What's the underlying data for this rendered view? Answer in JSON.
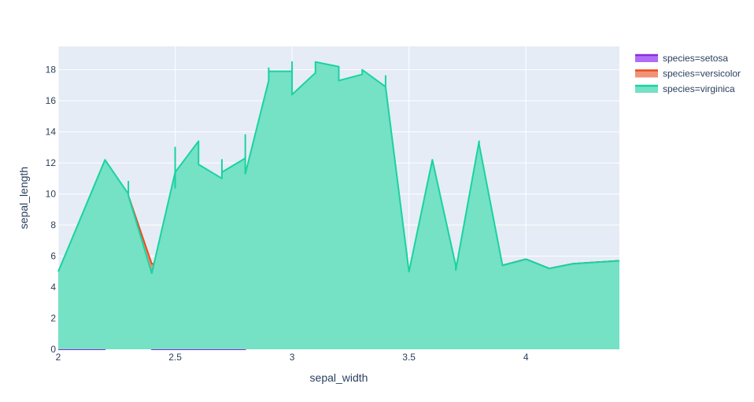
{
  "chart_data": {
    "type": "area",
    "xlabel": "sepal_width",
    "ylabel": "sepal_length",
    "xlim": [
      2.0,
      4.4
    ],
    "ylim": [
      0,
      19.5
    ],
    "x_ticks": [
      2,
      2.5,
      3,
      3.5,
      4
    ],
    "x_tick_labels": [
      "2",
      "2.5",
      "3",
      "3.5",
      "4"
    ],
    "y_ticks": [
      0,
      2,
      4,
      6,
      8,
      10,
      12,
      14,
      16,
      18
    ],
    "y_tick_labels": [
      "0",
      "2",
      "4",
      "6",
      "8",
      "10",
      "12",
      "14",
      "16",
      "18"
    ],
    "grid": true,
    "legend_position": "top-right",
    "background_color": "#e5ecf6",
    "series": [
      {
        "name": "species=setosa",
        "color": "#636efa",
        "fill_color": "#b06ef8",
        "line_color": "#8a2be2",
        "points": [
          [
            2.0,
            0
          ],
          [
            2.2,
            0
          ],
          [
            2.3,
            4.5
          ],
          [
            2.4,
            0
          ],
          [
            2.5,
            0
          ],
          [
            2.6,
            0
          ],
          [
            2.7,
            0
          ],
          [
            2.8,
            0
          ],
          [
            2.9,
            4.4
          ],
          [
            3.0,
            4.4
          ],
          [
            3.0,
            4.9
          ],
          [
            3.0,
            4.8
          ],
          [
            3.1,
            4.6
          ],
          [
            3.1,
            4.9
          ],
          [
            3.2,
            4.7
          ],
          [
            3.2,
            4.4
          ],
          [
            3.2,
            4.6
          ],
          [
            3.3,
            5.0
          ],
          [
            3.4,
            4.6
          ],
          [
            3.4,
            5.4
          ],
          [
            3.4,
            5.1
          ],
          [
            3.5,
            5.1
          ],
          [
            3.6,
            5.0
          ],
          [
            3.6,
            4.6
          ],
          [
            3.7,
            5.4
          ],
          [
            3.8,
            5.7
          ],
          [
            3.8,
            5.1
          ],
          [
            3.9,
            5.4
          ],
          [
            4.0,
            5.8
          ],
          [
            4.1,
            5.2
          ],
          [
            4.2,
            5.5
          ],
          [
            4.4,
            5.7
          ]
        ]
      },
      {
        "name": "species=versicolor",
        "color": "#EF553B",
        "fill_color": "#ef9479",
        "line_color": "#ef4a1b",
        "points": [
          [
            2.0,
            5.0
          ],
          [
            2.2,
            6.0
          ],
          [
            2.3,
            9.9
          ],
          [
            2.4,
            5.5
          ],
          [
            2.5,
            5.6
          ],
          [
            2.5,
            6.3
          ],
          [
            2.5,
            5.1
          ],
          [
            2.6,
            5.8
          ],
          [
            2.7,
            5.2
          ],
          [
            2.7,
            5.8
          ],
          [
            2.8,
            6.6
          ],
          [
            2.8,
            5.7
          ],
          [
            2.9,
            10.7
          ],
          [
            3.0,
            11.0
          ],
          [
            3.0,
            10.0
          ],
          [
            3.0,
            11.7
          ],
          [
            3.0,
            10.7
          ],
          [
            3.1,
            11.6
          ],
          [
            3.2,
            11.7
          ],
          [
            3.2,
            10.5
          ],
          [
            3.3,
            11.4
          ],
          [
            3.4,
            10.6
          ],
          [
            3.4,
            11.4
          ],
          [
            3.4,
            10.6
          ],
          [
            3.5,
            5.0
          ],
          [
            3.6,
            5.0
          ],
          [
            3.6,
            4.6
          ],
          [
            3.7,
            5.4
          ],
          [
            3.8,
            5.7
          ],
          [
            3.8,
            5.1
          ],
          [
            3.9,
            5.4
          ],
          [
            4.0,
            5.8
          ],
          [
            4.1,
            5.2
          ],
          [
            4.2,
            5.5
          ],
          [
            4.4,
            5.7
          ]
        ]
      },
      {
        "name": "species=virginica",
        "color": "#00cc96",
        "fill_color": "#75e1c5",
        "line_color": "#19d3a0",
        "points": [
          [
            2.0,
            5.0
          ],
          [
            2.2,
            12.2
          ],
          [
            2.3,
            10.0
          ],
          [
            2.3,
            10.8
          ],
          [
            2.3,
            9.9
          ],
          [
            2.4,
            4.9
          ],
          [
            2.5,
            11.4
          ],
          [
            2.5,
            13.0
          ],
          [
            2.5,
            10.4
          ],
          [
            2.5,
            11.4
          ],
          [
            2.6,
            13.4
          ],
          [
            2.6,
            11.9
          ],
          [
            2.7,
            11.0
          ],
          [
            2.7,
            12.2
          ],
          [
            2.7,
            11.4
          ],
          [
            2.8,
            12.3
          ],
          [
            2.8,
            13.8
          ],
          [
            2.8,
            11.3
          ],
          [
            2.9,
            17.3
          ],
          [
            2.9,
            18.1
          ],
          [
            2.9,
            17.9
          ],
          [
            3.0,
            17.9
          ],
          [
            3.0,
            18.5
          ],
          [
            3.0,
            16.4
          ],
          [
            3.1,
            17.8
          ],
          [
            3.1,
            18.5
          ],
          [
            3.2,
            18.2
          ],
          [
            3.2,
            17.3
          ],
          [
            3.3,
            17.7
          ],
          [
            3.3,
            18.0
          ],
          [
            3.4,
            16.9
          ],
          [
            3.4,
            17.6
          ],
          [
            3.4,
            16.9
          ],
          [
            3.5,
            5.0
          ],
          [
            3.6,
            12.2
          ],
          [
            3.7,
            5.4
          ],
          [
            3.7,
            5.1
          ],
          [
            3.8,
            13.4
          ],
          [
            3.8,
            13.2
          ],
          [
            3.9,
            5.4
          ],
          [
            4.0,
            5.8
          ],
          [
            4.1,
            5.2
          ],
          [
            4.2,
            5.5
          ],
          [
            4.4,
            5.7
          ]
        ]
      }
    ]
  }
}
